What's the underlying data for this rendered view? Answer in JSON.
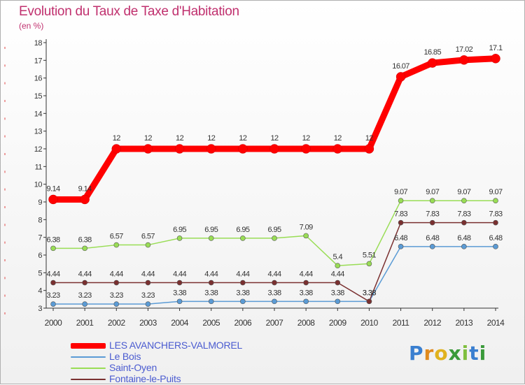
{
  "title": "Evolution du Taux de Taxe d'Habitation",
  "unit": "(en %)",
  "logo": {
    "letters": [
      "P",
      "r",
      "o",
      "x",
      "i",
      "t",
      "i"
    ],
    "colors": [
      "#3a7fd0",
      "#e08a1e",
      "#e0b21e",
      "#3a9a3a",
      "#7fbf3f",
      "#3a7fd0",
      "#3a9a3a"
    ]
  },
  "chart_data": {
    "type": "line",
    "title": "Evolution du Taux de Taxe d'Habitation",
    "ylabel": "(en %)",
    "xlabel": "",
    "x": [
      "2000",
      "2001",
      "2002",
      "2003",
      "2004",
      "2005",
      "2006",
      "2007",
      "2008",
      "2009",
      "2010",
      "2011",
      "2012",
      "2013",
      "2014"
    ],
    "ylim": [
      3,
      18
    ],
    "yticks": [
      3,
      4,
      5,
      6,
      7,
      8,
      9,
      10,
      11,
      12,
      13,
      14,
      15,
      16,
      17,
      18
    ],
    "grid": false,
    "legend": "bottom-left",
    "series": [
      {
        "name": "LES AVANCHERS-VALMOREL",
        "color": "#ff0000",
        "values": [
          9.14,
          9.14,
          12,
          12,
          12,
          12,
          12,
          12,
          12,
          12,
          12,
          16.07,
          16.85,
          17.02,
          17.1
        ],
        "labels": [
          "9.14",
          "9.14",
          "12",
          "12",
          "12",
          "12",
          "12",
          "12",
          "12",
          "12",
          "12",
          "16.07",
          "16.85",
          "17.02",
          "17.1"
        ]
      },
      {
        "name": "Le Bois",
        "color": "#5b9bd5",
        "values": [
          3.23,
          3.23,
          3.23,
          3.23,
          3.38,
          3.38,
          3.38,
          3.38,
          3.38,
          3.38,
          3.38,
          6.48,
          6.48,
          6.48,
          6.48
        ],
        "labels": [
          "3.23",
          "3.23",
          "3.23",
          "3.23",
          "3.38",
          "3.38",
          "3.38",
          "3.38",
          "3.38",
          "3.38",
          "3.38",
          "6.48",
          "6.48",
          "6.48",
          "6.48"
        ]
      },
      {
        "name": "Saint-Oyen",
        "color": "#99dd55",
        "values": [
          6.38,
          6.38,
          6.57,
          6.57,
          6.95,
          6.95,
          6.95,
          6.95,
          7.09,
          5.4,
          5.51,
          9.07,
          9.07,
          9.07,
          9.07
        ],
        "labels": [
          "6.38",
          "6.38",
          "6.57",
          "6.57",
          "6.95",
          "6.95",
          "6.95",
          "6.95",
          "7.09",
          "5.4",
          "5.51",
          "9.07",
          "9.07",
          "9.07",
          "9.07"
        ]
      },
      {
        "name": "Fontaine-le-Puits",
        "color": "#7a3030",
        "values": [
          4.44,
          4.44,
          4.44,
          4.44,
          4.44,
          4.44,
          4.44,
          4.44,
          4.44,
          4.44,
          3.38,
          7.83,
          7.83,
          7.83,
          7.83
        ],
        "labels": [
          "4.44",
          "4.44",
          "4.44",
          "4.44",
          "4.44",
          "4.44",
          "4.44",
          "4.44",
          "4.44",
          "4.44",
          "3.38",
          "7.83",
          "7.83",
          "7.83",
          "7.83"
        ]
      }
    ]
  }
}
